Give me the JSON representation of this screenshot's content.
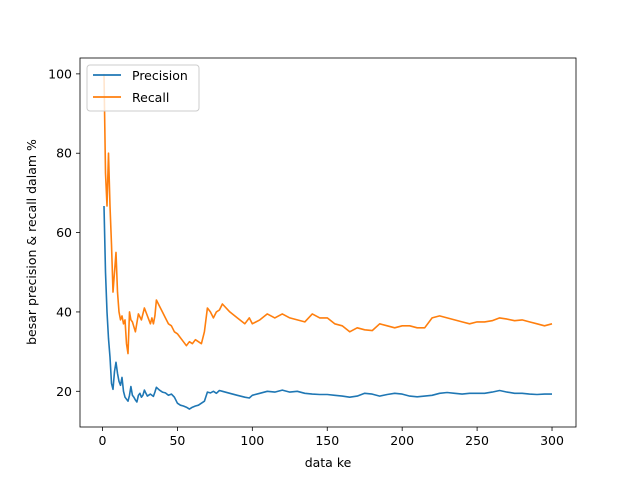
{
  "chart_data": {
    "type": "line",
    "title": "",
    "xlabel": "data ke",
    "ylabel": "besar precision & recall dalam %",
    "xlim": [
      -15,
      316
    ],
    "ylim": [
      11,
      104
    ],
    "xticks": [
      0,
      50,
      100,
      150,
      200,
      250,
      300
    ],
    "yticks": [
      20,
      40,
      60,
      80,
      100
    ],
    "grid": false,
    "legend_position": "top-left",
    "series": [
      {
        "name": "Precision",
        "color": "#1f77b4",
        "points": [
          [
            1,
            66.7
          ],
          [
            2,
            50
          ],
          [
            3,
            40
          ],
          [
            4,
            33.3
          ],
          [
            5,
            28.6
          ],
          [
            6,
            22
          ],
          [
            7,
            20.5
          ],
          [
            8,
            25
          ],
          [
            9,
            27.3
          ],
          [
            10,
            24.5
          ],
          [
            11,
            22.5
          ],
          [
            12,
            21.5
          ],
          [
            13,
            23.5
          ],
          [
            14,
            20
          ],
          [
            15,
            18.5
          ],
          [
            16,
            18
          ],
          [
            17,
            17.5
          ],
          [
            18,
            19
          ],
          [
            19,
            21.2
          ],
          [
            20,
            19
          ],
          [
            21,
            18.5
          ],
          [
            22,
            17.8
          ],
          [
            23,
            17.3
          ],
          [
            24,
            19
          ],
          [
            25,
            19.5
          ],
          [
            26,
            18.5
          ],
          [
            27,
            19
          ],
          [
            28,
            20.3
          ],
          [
            29,
            19.5
          ],
          [
            30,
            18.8
          ],
          [
            32,
            19.3
          ],
          [
            34,
            18.7
          ],
          [
            35,
            19.8
          ],
          [
            36,
            21
          ],
          [
            38,
            20.3
          ],
          [
            40,
            19.8
          ],
          [
            42,
            19.6
          ],
          [
            44,
            19
          ],
          [
            46,
            19.3
          ],
          [
            48,
            18.5
          ],
          [
            50,
            17
          ],
          [
            52,
            16.5
          ],
          [
            54,
            16.3
          ],
          [
            56,
            16
          ],
          [
            58,
            15.5
          ],
          [
            60,
            16
          ],
          [
            62,
            16.3
          ],
          [
            64,
            16.5
          ],
          [
            66,
            17
          ],
          [
            68,
            17.5
          ],
          [
            70,
            19.8
          ],
          [
            72,
            19.6
          ],
          [
            74,
            20
          ],
          [
            76,
            19.5
          ],
          [
            78,
            20.2
          ],
          [
            80,
            20
          ],
          [
            85,
            19.5
          ],
          [
            90,
            19
          ],
          [
            95,
            18.5
          ],
          [
            98,
            18.3
          ],
          [
            100,
            19
          ],
          [
            105,
            19.5
          ],
          [
            110,
            20
          ],
          [
            115,
            19.8
          ],
          [
            120,
            20.3
          ],
          [
            125,
            19.8
          ],
          [
            130,
            20
          ],
          [
            135,
            19.5
          ],
          [
            140,
            19.3
          ],
          [
            145,
            19.2
          ],
          [
            150,
            19.2
          ],
          [
            155,
            19
          ],
          [
            160,
            18.8
          ],
          [
            165,
            18.5
          ],
          [
            170,
            18.8
          ],
          [
            175,
            19.5
          ],
          [
            180,
            19.3
          ],
          [
            185,
            18.8
          ],
          [
            190,
            19.2
          ],
          [
            195,
            19.5
          ],
          [
            200,
            19.3
          ],
          [
            205,
            18.8
          ],
          [
            210,
            18.6
          ],
          [
            215,
            18.8
          ],
          [
            220,
            19
          ],
          [
            225,
            19.5
          ],
          [
            230,
            19.7
          ],
          [
            235,
            19.5
          ],
          [
            240,
            19.3
          ],
          [
            245,
            19.5
          ],
          [
            250,
            19.5
          ],
          [
            255,
            19.5
          ],
          [
            260,
            19.8
          ],
          [
            265,
            20.2
          ],
          [
            270,
            19.8
          ],
          [
            275,
            19.5
          ],
          [
            280,
            19.5
          ],
          [
            285,
            19.3
          ],
          [
            290,
            19.2
          ],
          [
            295,
            19.3
          ],
          [
            300,
            19.3
          ]
        ]
      },
      {
        "name": "Recall",
        "color": "#ff7f0e",
        "points": [
          [
            1,
            100
          ],
          [
            2,
            75
          ],
          [
            3,
            66.7
          ],
          [
            4,
            80
          ],
          [
            5,
            66.7
          ],
          [
            6,
            57
          ],
          [
            7,
            45
          ],
          [
            8,
            50
          ],
          [
            9,
            55
          ],
          [
            10,
            45
          ],
          [
            11,
            40
          ],
          [
            12,
            38
          ],
          [
            13,
            39
          ],
          [
            14,
            37
          ],
          [
            15,
            38
          ],
          [
            16,
            32
          ],
          [
            17,
            29.5
          ],
          [
            18,
            40
          ],
          [
            19,
            38
          ],
          [
            20,
            37.5
          ],
          [
            22,
            35
          ],
          [
            24,
            39.5
          ],
          [
            26,
            38
          ],
          [
            28,
            41
          ],
          [
            30,
            39
          ],
          [
            32,
            37
          ],
          [
            33,
            38.5
          ],
          [
            34,
            37
          ],
          [
            35,
            39
          ],
          [
            36,
            43
          ],
          [
            38,
            41.5
          ],
          [
            40,
            40
          ],
          [
            42,
            38.5
          ],
          [
            44,
            37
          ],
          [
            46,
            36.5
          ],
          [
            48,
            35
          ],
          [
            50,
            34.5
          ],
          [
            52,
            33.5
          ],
          [
            54,
            32.5
          ],
          [
            56,
            31.5
          ],
          [
            58,
            32.5
          ],
          [
            60,
            32
          ],
          [
            62,
            33
          ],
          [
            64,
            32.5
          ],
          [
            66,
            32
          ],
          [
            68,
            35
          ],
          [
            70,
            41
          ],
          [
            72,
            40
          ],
          [
            74,
            38.5
          ],
          [
            76,
            40
          ],
          [
            78,
            40.5
          ],
          [
            80,
            42
          ],
          [
            85,
            40
          ],
          [
            90,
            38.5
          ],
          [
            95,
            37
          ],
          [
            98,
            38.5
          ],
          [
            100,
            37
          ],
          [
            105,
            38
          ],
          [
            110,
            39.5
          ],
          [
            115,
            38.5
          ],
          [
            120,
            39.5
          ],
          [
            125,
            38.5
          ],
          [
            130,
            38
          ],
          [
            135,
            37.5
          ],
          [
            140,
            39.5
          ],
          [
            145,
            38.5
          ],
          [
            150,
            38.5
          ],
          [
            155,
            37
          ],
          [
            160,
            36.5
          ],
          [
            165,
            35
          ],
          [
            170,
            36
          ],
          [
            175,
            35.5
          ],
          [
            180,
            35.3
          ],
          [
            185,
            37
          ],
          [
            190,
            36.5
          ],
          [
            195,
            36
          ],
          [
            200,
            36.5
          ],
          [
            205,
            36.5
          ],
          [
            210,
            36
          ],
          [
            215,
            36
          ],
          [
            220,
            38.5
          ],
          [
            225,
            39
          ],
          [
            230,
            38.5
          ],
          [
            235,
            38
          ],
          [
            240,
            37.5
          ],
          [
            245,
            37
          ],
          [
            250,
            37.5
          ],
          [
            255,
            37.5
          ],
          [
            260,
            37.8
          ],
          [
            265,
            38.5
          ],
          [
            270,
            38.2
          ],
          [
            275,
            37.8
          ],
          [
            280,
            38
          ],
          [
            285,
            37.5
          ],
          [
            290,
            37
          ],
          [
            295,
            36.5
          ],
          [
            300,
            37
          ]
        ]
      }
    ]
  }
}
